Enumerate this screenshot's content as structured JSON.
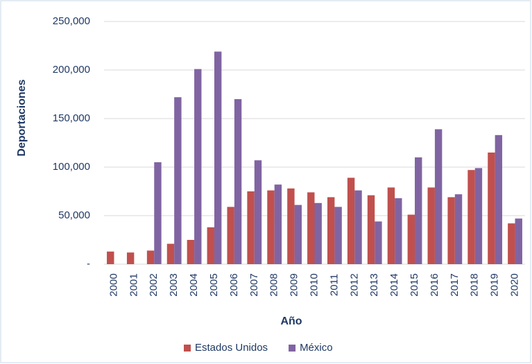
{
  "chart_data": {
    "type": "bar",
    "y_label": "Deportaciones",
    "x_label": "Año",
    "categories": [
      "2000",
      "2001",
      "2002",
      "2003",
      "2004",
      "2005",
      "2006",
      "2007",
      "2008",
      "2009",
      "2010",
      "2011",
      "2012",
      "2013",
      "2014",
      "2015",
      "2016",
      "2017",
      "2018",
      "2019",
      "2020"
    ],
    "series": [
      {
        "name": "Estados Unidos",
        "color": "#c0504d",
        "values": [
          13000,
          12000,
          14000,
          21000,
          25000,
          38000,
          59000,
          75000,
          76000,
          78000,
          74000,
          69000,
          89000,
          71000,
          79000,
          51000,
          79000,
          69000,
          97000,
          115000,
          42000
        ]
      },
      {
        "name": "México",
        "color": "#8064a2",
        "values": [
          null,
          null,
          105000,
          172000,
          201000,
          219000,
          170000,
          107000,
          82000,
          61000,
          63000,
          59000,
          76000,
          44000,
          68000,
          110000,
          139000,
          72000,
          99000,
          133000,
          47000
        ]
      }
    ],
    "ylim": [
      0,
      250000
    ],
    "yticks": [
      {
        "value": 0,
        "label": "-"
      },
      {
        "value": 50000,
        "label": "50,000"
      },
      {
        "value": 100000,
        "label": "100,000"
      },
      {
        "value": 150000,
        "label": "150,000"
      },
      {
        "value": 200000,
        "label": "200,000"
      },
      {
        "value": 250000,
        "label": "250,000"
      }
    ],
    "grid": true,
    "legend": "bottom"
  }
}
